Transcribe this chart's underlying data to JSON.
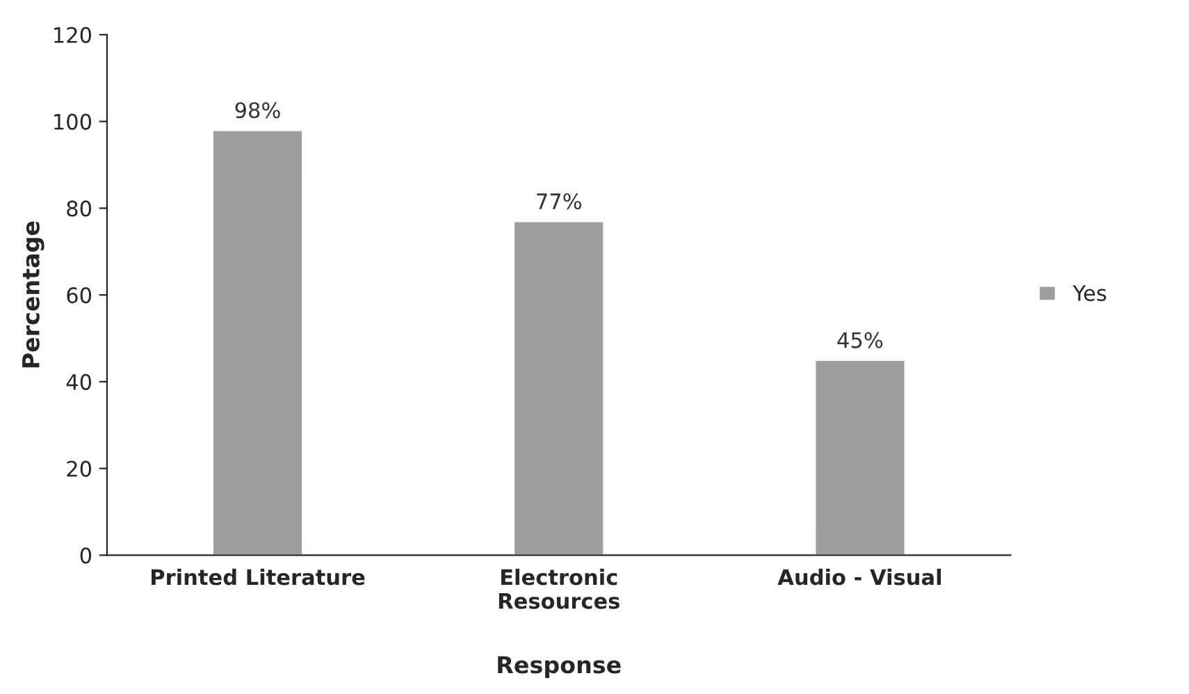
{
  "chart_data": {
    "type": "bar",
    "xlabel": "Response",
    "ylabel": "Percentage",
    "categories": [
      "Printed Literature",
      "Electronic\nResources",
      "Audio - Visual"
    ],
    "series": [
      {
        "name": "Yes",
        "color": "#9e9e9e",
        "values": [
          98,
          77,
          45
        ],
        "value_labels": [
          "98%",
          "77%",
          "45%"
        ]
      }
    ],
    "ylim": [
      0,
      120
    ],
    "yticks": [
      0,
      20,
      40,
      60,
      80,
      100,
      120
    ],
    "grid": false,
    "legend": "right"
  }
}
